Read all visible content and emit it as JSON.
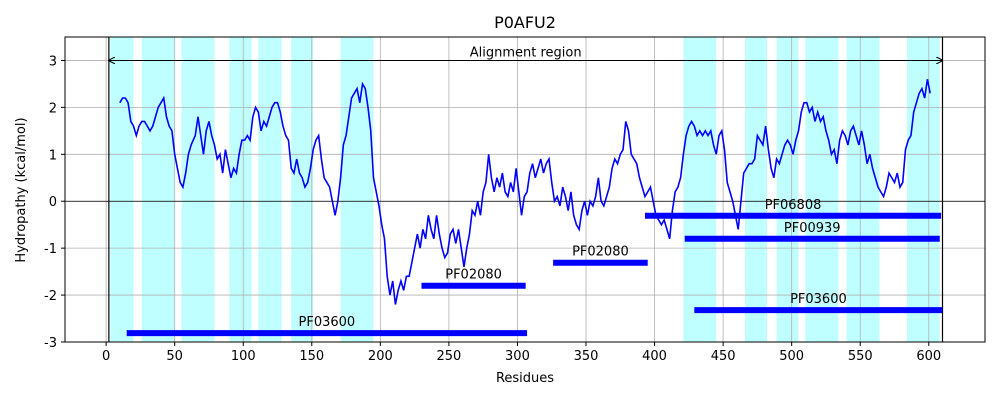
{
  "chart_data": {
    "type": "line",
    "title": "P0AFU2",
    "x_label": "Residues",
    "y_label": "Hydropathy (kcal/mol)",
    "xlim": [
      -30,
      641
    ],
    "ylim": [
      -3,
      3.5
    ],
    "xticks": [
      0,
      50,
      100,
      150,
      200,
      250,
      300,
      350,
      400,
      450,
      500,
      550,
      600
    ],
    "yticks": [
      -3,
      -2,
      -1,
      0,
      1,
      2,
      3
    ],
    "grid": true,
    "hline": 0,
    "alignment_region": {
      "label": "Alignment region",
      "start": 2,
      "end": 610,
      "y": 3
    },
    "highlight_color": "#c0ffff",
    "highlight_regions": [
      [
        3,
        20
      ],
      [
        26,
        50
      ],
      [
        55,
        79
      ],
      [
        90,
        106
      ],
      [
        111,
        128
      ],
      [
        135,
        151
      ],
      [
        171,
        195
      ],
      [
        421,
        445
      ],
      [
        466,
        482
      ],
      [
        489,
        505
      ],
      [
        510,
        534
      ],
      [
        540,
        564
      ],
      [
        584,
        608
      ]
    ],
    "domain_color": "#0000ff",
    "domains": [
      {
        "name": "PF06808",
        "start": 393,
        "end": 609,
        "y": -0.31
      },
      {
        "name": "PF00939",
        "start": 422,
        "end": 608,
        "y": -0.8
      },
      {
        "name": "PF02080",
        "start": 230,
        "end": 306,
        "y": -1.8
      },
      {
        "name": "PF02080",
        "start": 326,
        "end": 395,
        "y": -1.31
      },
      {
        "name": "PF03600",
        "start": 429,
        "end": 610,
        "y": -2.32
      },
      {
        "name": "PF03600",
        "start": 15,
        "end": 307,
        "y": -2.81
      }
    ],
    "color": "#0000ff",
    "x": [
      10,
      12,
      14,
      16,
      18,
      20,
      22,
      24,
      26,
      28,
      30,
      32,
      34,
      36,
      38,
      40,
      42,
      44,
      46,
      48,
      50,
      52,
      54,
      56,
      58,
      60,
      62,
      65,
      67,
      69,
      71,
      73,
      75,
      77,
      79,
      81,
      83,
      85,
      87,
      89,
      91,
      93,
      95,
      97,
      99,
      101,
      103,
      105,
      107,
      109,
      111,
      113,
      115,
      117,
      119,
      121,
      123,
      125,
      127,
      129,
      131,
      133,
      135,
      137,
      139,
      141,
      143,
      145,
      147,
      149,
      151,
      153,
      155,
      157,
      159,
      161,
      163,
      165,
      167,
      169,
      171,
      173,
      175,
      177,
      179,
      181,
      183,
      185,
      187,
      189,
      191,
      193,
      195,
      197,
      199,
      201,
      203,
      205,
      207,
      209,
      211,
      213,
      215,
      217,
      219,
      221,
      223,
      225,
      227,
      229,
      231,
      233,
      235,
      237,
      239,
      241,
      243,
      245,
      247,
      249,
      251,
      253,
      255,
      257,
      259,
      261,
      263,
      265,
      267,
      269,
      271,
      273,
      275,
      277,
      279,
      281,
      283,
      285,
      287,
      289,
      291,
      293,
      295,
      297,
      299,
      301,
      303,
      305,
      307,
      309,
      311,
      313,
      315,
      317,
      319,
      321,
      323,
      325,
      327,
      329,
      331,
      333,
      335,
      337,
      339,
      341,
      343,
      345,
      347,
      349,
      351,
      353,
      355,
      357,
      359,
      361,
      363,
      365,
      367,
      369,
      371,
      373,
      375,
      377,
      379,
      381,
      383,
      385,
      387,
      389,
      391,
      393,
      395,
      397,
      399,
      401,
      403,
      405,
      407,
      409,
      411,
      413,
      415,
      417,
      419,
      421,
      423,
      425,
      427,
      429,
      431,
      433,
      435,
      437,
      439,
      441,
      443,
      445,
      447,
      449,
      451,
      453,
      455,
      457,
      459,
      461,
      463,
      465,
      467,
      469,
      471,
      473,
      475,
      477,
      479,
      481,
      483,
      485,
      487,
      489,
      491,
      493,
      495,
      497,
      499,
      501,
      503,
      505,
      507,
      509,
      511,
      513,
      515,
      517,
      519,
      521,
      523,
      525,
      527,
      529,
      531,
      533,
      535,
      537,
      539,
      541,
      543,
      545,
      547,
      549,
      551,
      553,
      555,
      557,
      559,
      561,
      563,
      565,
      567,
      569,
      571,
      573,
      575,
      577,
      579,
      581,
      583,
      585,
      587,
      589,
      591,
      593,
      595,
      597,
      599,
      601
    ],
    "values": [
      2.1,
      2.2,
      2.2,
      2.1,
      1.7,
      1.6,
      1.4,
      1.6,
      1.7,
      1.7,
      1.6,
      1.5,
      1.6,
      1.8,
      2.0,
      2.1,
      2.2,
      1.8,
      1.6,
      1.5,
      1.0,
      0.7,
      0.4,
      0.3,
      0.6,
      1.0,
      1.2,
      1.4,
      1.8,
      1.4,
      1.0,
      1.5,
      1.7,
      1.4,
      1.2,
      0.9,
      1.0,
      0.6,
      1.1,
      0.8,
      0.5,
      0.7,
      0.6,
      1.0,
      1.3,
      1.3,
      1.4,
      1.3,
      1.8,
      2.0,
      1.9,
      1.5,
      1.7,
      1.6,
      1.8,
      2.0,
      2.1,
      2.1,
      1.9,
      1.6,
      1.4,
      1.3,
      0.7,
      0.6,
      0.9,
      0.6,
      0.5,
      0.3,
      0.4,
      0.7,
      1.1,
      1.3,
      1.4,
      0.9,
      0.5,
      0.4,
      0.3,
      0.0,
      -0.3,
      0.0,
      0.5,
      1.2,
      1.4,
      1.8,
      2.2,
      2.3,
      2.4,
      2.1,
      2.5,
      2.4,
      2.0,
      1.5,
      0.5,
      0.2,
      -0.1,
      -0.5,
      -0.8,
      -1.6,
      -2.0,
      -1.7,
      -2.2,
      -1.9,
      -1.7,
      -1.9,
      -1.6,
      -1.6,
      -1.3,
      -1.0,
      -0.7,
      -1.0,
      -0.6,
      -0.8,
      -0.3,
      -0.6,
      -0.8,
      -0.3,
      -0.7,
      -1.0,
      -1.2,
      -1.1,
      -0.7,
      -0.6,
      -0.9,
      -0.6,
      -1.0,
      -1.4,
      -1.0,
      -0.7,
      -0.2,
      -0.3,
      0.0,
      -0.3,
      0.2,
      0.4,
      1.0,
      0.5,
      0.2,
      0.5,
      0.3,
      0.6,
      0.2,
      0.1,
      0.4,
      0.2,
      0.7,
      0.2,
      -0.3,
      0.1,
      0.2,
      0.6,
      0.8,
      0.5,
      0.7,
      0.9,
      0.6,
      0.8,
      0.9,
      0.4,
      0.0,
      0.1,
      -0.1,
      0.3,
      0.1,
      -0.2,
      0.2,
      -0.3,
      -0.5,
      -0.6,
      -0.2,
      0.0,
      -0.3,
      0.0,
      -0.1,
      0.1,
      0.5,
      0.0,
      -0.1,
      0.1,
      0.3,
      0.7,
      0.9,
      0.8,
      1.0,
      1.1,
      1.7,
      1.5,
      1.0,
      0.9,
      0.8,
      0.5,
      0.3,
      0.1,
      0.2,
      0.3,
      0.0,
      -0.3,
      -0.4,
      -0.5,
      -0.4,
      -0.6,
      -0.8,
      -0.2,
      0.2,
      0.3,
      0.5,
      1.0,
      1.4,
      1.6,
      1.7,
      1.6,
      1.4,
      1.5,
      1.4,
      1.5,
      1.4,
      1.5,
      1.2,
      1.0,
      1.4,
      1.5,
      1.1,
      0.4,
      0.2,
      0.0,
      -0.3,
      -0.6,
      0.0,
      0.6,
      0.7,
      0.8,
      0.8,
      0.9,
      1.4,
      1.3,
      1.2,
      1.6,
      1.1,
      0.7,
      0.5,
      0.9,
      0.8,
      1.0,
      1.2,
      1.3,
      1.2,
      1.0,
      1.3,
      1.5,
      1.9,
      2.1,
      2.1,
      1.9,
      2.0,
      1.7,
      1.9,
      1.7,
      1.8,
      1.5,
      1.3,
      1.0,
      1.1,
      0.8,
      1.3,
      1.5,
      1.4,
      1.2,
      1.5,
      1.6,
      1.4,
      1.2,
      1.5,
      1.2,
      0.8,
      1.0,
      0.7,
      0.5,
      0.3,
      0.2,
      0.1,
      0.3,
      0.6,
      0.5,
      0.4,
      0.6,
      0.3,
      0.4,
      1.1,
      1.3,
      1.4,
      1.9,
      2.1,
      2.3,
      2.4,
      2.2,
      2.6,
      2.3
    ]
  }
}
